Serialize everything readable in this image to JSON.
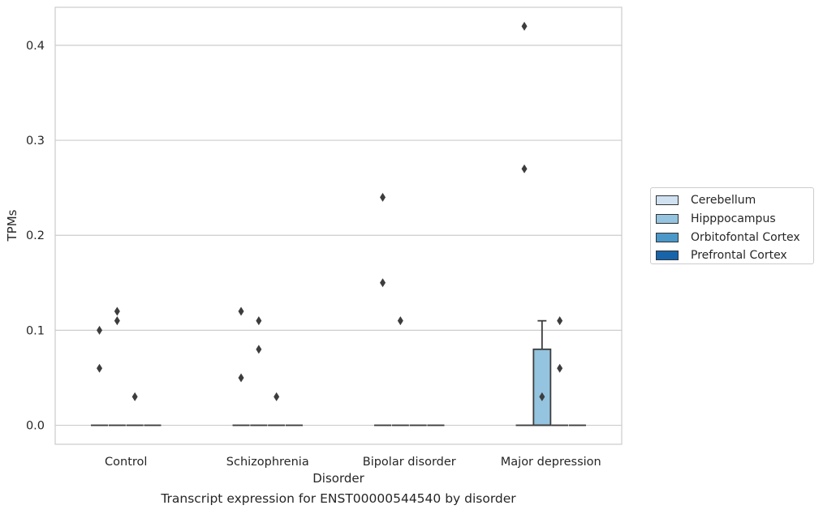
{
  "chart_data": {
    "type": "box",
    "title": "",
    "caption": "Transcript expression for ENST00000544540 by disorder",
    "xlabel": "Disorder",
    "ylabel": "TPMs",
    "ylim": [
      -0.02,
      0.44
    ],
    "yticks": [
      0.0,
      0.1,
      0.2,
      0.3,
      0.4
    ],
    "ytick_labels": [
      "0.0",
      "0.1",
      "0.2",
      "0.3",
      "0.4"
    ],
    "grid": "horizontal",
    "legend_position": "right",
    "categories": [
      "Control",
      "Schizophrenia",
      "Bipolar disorder",
      "Major depression"
    ],
    "series": [
      {
        "name": "Cerebellum",
        "color": "#d0e1f2",
        "boxes": [
          {
            "q1": 0,
            "median": 0,
            "q3": 0,
            "whisker_low": 0,
            "whisker_high": 0,
            "outliers": [
              0.06,
              0.1
            ]
          },
          {
            "q1": 0,
            "median": 0,
            "q3": 0,
            "whisker_low": 0,
            "whisker_high": 0,
            "outliers": [
              0.05,
              0.12
            ]
          },
          {
            "q1": 0,
            "median": 0,
            "q3": 0,
            "whisker_low": 0,
            "whisker_high": 0,
            "outliers": [
              0.15,
              0.24
            ]
          },
          {
            "q1": 0,
            "median": 0,
            "q3": 0,
            "whisker_low": 0,
            "whisker_high": 0,
            "outliers": [
              0.27,
              0.42
            ]
          }
        ]
      },
      {
        "name": "Hipppocampus",
        "color": "#94c4df",
        "boxes": [
          {
            "q1": 0,
            "median": 0,
            "q3": 0,
            "whisker_low": 0,
            "whisker_high": 0,
            "outliers": [
              0.11,
              0.12
            ]
          },
          {
            "q1": 0,
            "median": 0,
            "q3": 0,
            "whisker_low": 0,
            "whisker_high": 0,
            "outliers": [
              0.08,
              0.11
            ]
          },
          {
            "q1": 0,
            "median": 0,
            "q3": 0,
            "whisker_low": 0,
            "whisker_high": 0,
            "outliers": [
              0.11
            ]
          },
          {
            "q1": 0,
            "median": 0,
            "q3": 0.08,
            "whisker_low": 0,
            "whisker_high": 0.11,
            "outliers": [
              0.03
            ]
          }
        ]
      },
      {
        "name": "Orbitofontal Cortex",
        "color": "#4a98c9",
        "boxes": [
          {
            "q1": 0,
            "median": 0,
            "q3": 0,
            "whisker_low": 0,
            "whisker_high": 0,
            "outliers": [
              0.03
            ]
          },
          {
            "q1": 0,
            "median": 0,
            "q3": 0,
            "whisker_low": 0,
            "whisker_high": 0,
            "outliers": [
              0.03
            ]
          },
          {
            "q1": 0,
            "median": 0,
            "q3": 0,
            "whisker_low": 0,
            "whisker_high": 0,
            "outliers": []
          },
          {
            "q1": 0,
            "median": 0,
            "q3": 0,
            "whisker_low": 0,
            "whisker_high": 0,
            "outliers": [
              0.06,
              0.11
            ]
          }
        ]
      },
      {
        "name": "Prefrontal Cortex",
        "color": "#1764ab",
        "boxes": [
          {
            "q1": 0,
            "median": 0,
            "q3": 0,
            "whisker_low": 0,
            "whisker_high": 0,
            "outliers": []
          },
          {
            "q1": 0,
            "median": 0,
            "q3": 0,
            "whisker_low": 0,
            "whisker_high": 0,
            "outliers": []
          },
          {
            "q1": 0,
            "median": 0,
            "q3": 0,
            "whisker_low": 0,
            "whisker_high": 0,
            "outliers": []
          },
          {
            "q1": 0,
            "median": 0,
            "q3": 0,
            "whisker_low": 0,
            "whisker_high": 0,
            "outliers": []
          }
        ]
      }
    ]
  }
}
